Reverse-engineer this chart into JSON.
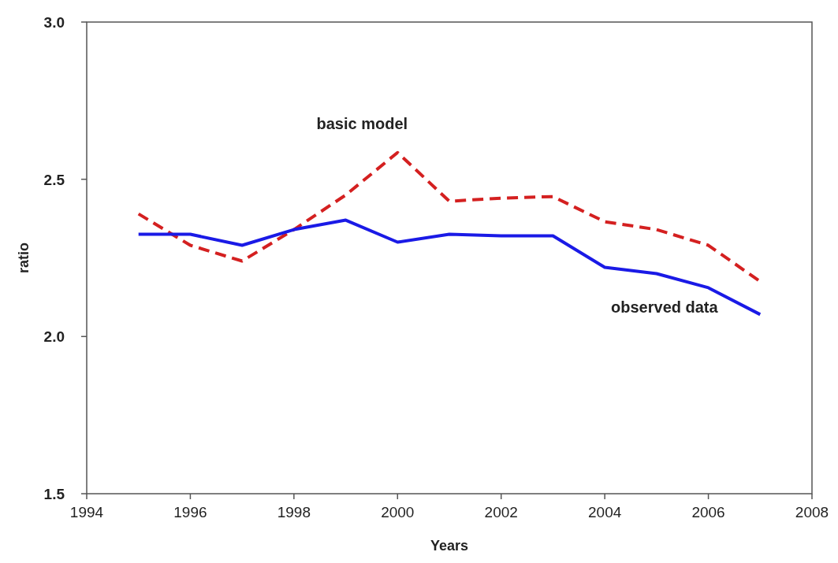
{
  "chart_data": {
    "type": "line",
    "xlabel": "Years",
    "ylabel": "ratio",
    "x": [
      1995,
      1996,
      1997,
      1998,
      1999,
      2000,
      2001,
      2002,
      2003,
      2004,
      2005,
      2006,
      2007
    ],
    "series": [
      {
        "name": "basic model",
        "color": "#d42020",
        "line_style": "dashed",
        "values": [
          2.39,
          2.29,
          2.24,
          2.34,
          2.45,
          2.585,
          2.43,
          2.44,
          2.445,
          2.365,
          2.34,
          2.29,
          2.175
        ]
      },
      {
        "name": "observed data",
        "color": "#1a1ae6",
        "line_style": "solid",
        "values": [
          2.325,
          2.325,
          2.29,
          2.34,
          2.37,
          2.3,
          2.325,
          2.32,
          2.32,
          2.22,
          2.2,
          2.155,
          2.07
        ]
      }
    ],
    "xlim": [
      1994,
      2008
    ],
    "xticks": [
      1994,
      1996,
      1998,
      2000,
      2002,
      2004,
      2006,
      2008
    ],
    "ylim": [
      1.5,
      3.0
    ],
    "yticks": [
      1.5,
      {
        "value": 2,
        "label": "2.0"
      },
      2.5,
      {
        "value": 3,
        "label": "3.0"
      }
    ],
    "grid": false,
    "legend": false,
    "marker": "none"
  }
}
